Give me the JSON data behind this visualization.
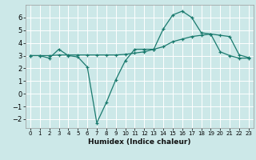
{
  "line1_x": [
    0,
    1,
    2,
    3,
    4,
    5,
    6,
    7,
    8,
    9,
    10,
    11,
    12,
    13,
    14,
    15,
    16,
    17,
    18,
    19,
    20,
    21,
    22,
    23
  ],
  "line1_y": [
    3.0,
    3.0,
    2.8,
    3.5,
    3.0,
    2.9,
    2.1,
    -2.3,
    -0.7,
    1.1,
    2.6,
    3.5,
    3.5,
    3.5,
    5.1,
    6.2,
    6.5,
    6.0,
    4.8,
    4.7,
    3.3,
    3.0,
    2.8,
    2.8
  ],
  "line2_x": [
    0,
    1,
    2,
    3,
    4,
    5,
    6,
    7,
    8,
    9,
    10,
    11,
    12,
    13,
    14,
    15,
    16,
    17,
    18,
    19,
    20,
    21,
    22,
    23
  ],
  "line2_y": [
    3.0,
    3.0,
    3.0,
    3.05,
    3.05,
    3.05,
    3.05,
    3.05,
    3.05,
    3.05,
    3.1,
    3.2,
    3.3,
    3.5,
    3.7,
    4.1,
    4.3,
    4.5,
    4.6,
    4.7,
    4.6,
    4.5,
    3.05,
    2.85
  ],
  "line_color": "#1a7a6e",
  "bg_color": "#cce8e8",
  "grid_color": "#ffffff",
  "xlabel": "Humidex (Indice chaleur)",
  "ylim": [
    -2.7,
    7.0
  ],
  "xlim": [
    -0.5,
    23.5
  ],
  "yticks": [
    -2,
    -1,
    0,
    1,
    2,
    3,
    4,
    5,
    6
  ],
  "xticks": [
    0,
    1,
    2,
    3,
    4,
    5,
    6,
    7,
    8,
    9,
    10,
    11,
    12,
    13,
    14,
    15,
    16,
    17,
    18,
    19,
    20,
    21,
    22,
    23
  ],
  "xlabel_fontsize": 6.5,
  "tick_fontsize_x": 5.0,
  "tick_fontsize_y": 6.0
}
